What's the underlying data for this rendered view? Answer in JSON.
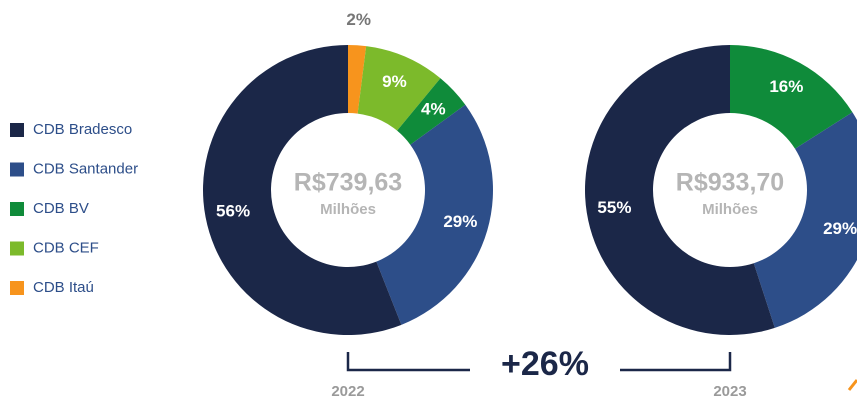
{
  "legend": [
    {
      "name": "CDB Bradesco",
      "color": "#1b2748"
    },
    {
      "name": "CDB Santander",
      "color": "#2d4e89"
    },
    {
      "name": "CDB BV",
      "color": "#0f8b3a"
    },
    {
      "name": "CDB CEF",
      "color": "#7cba2b"
    },
    {
      "name": "CDB Itaú",
      "color": "#f7941d"
    }
  ],
  "chart_data": [
    {
      "type": "donut",
      "label": "2022",
      "center_value": "R$739,63",
      "center_unit": "Milhões",
      "values": [
        56,
        29,
        4,
        9,
        2
      ],
      "value_labels": [
        "56%",
        "29%",
        "4%",
        "9%",
        "2%"
      ]
    },
    {
      "type": "donut",
      "label": "2023",
      "center_value": "R$933,70",
      "center_unit": "Milhões",
      "values": [
        55,
        29,
        16
      ],
      "value_labels": [
        "55%",
        "29%",
        "16%"
      ]
    }
  ],
  "change_label": "+26%"
}
